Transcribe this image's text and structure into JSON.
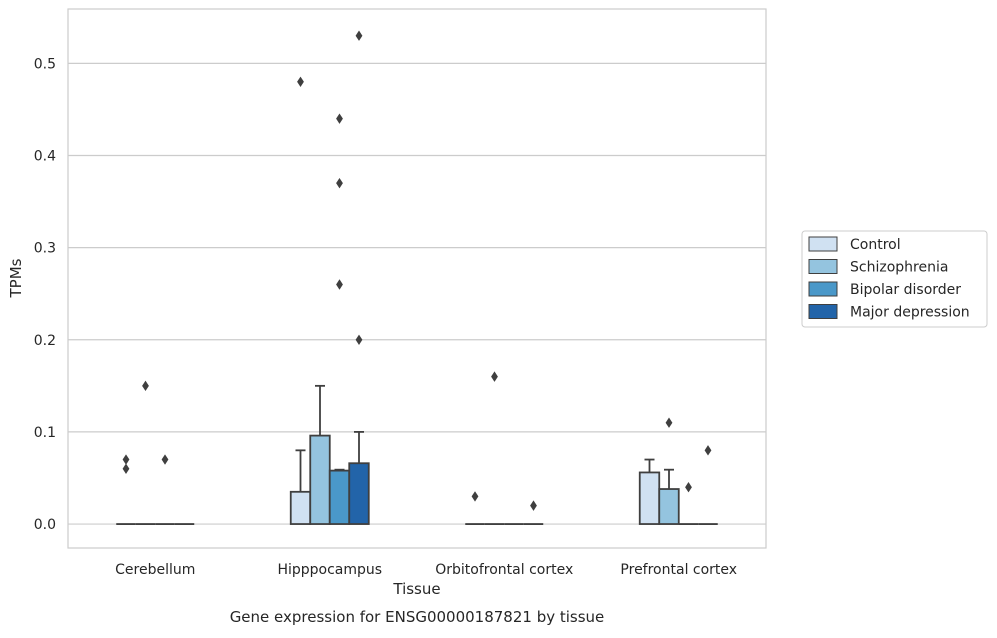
{
  "chart_data": {
    "type": "bar",
    "caption": "Gene expression for ENSG00000187821 by tissue",
    "xlabel": "Tissue",
    "ylabel": "TPMs",
    "ylim": [
      -0.026,
      0.559
    ],
    "yticks": [
      "0.0",
      "0.1",
      "0.2",
      "0.3",
      "0.4",
      "0.5"
    ],
    "ytick_values": [
      0.0,
      0.1,
      0.2,
      0.3,
      0.4,
      0.5
    ],
    "grid": "horizontal",
    "legend_position": "outside-right",
    "categories": [
      "Cerebellum",
      "Hipppocampus",
      "Orbitofrontal cortex",
      "Prefrontal cortex"
    ],
    "series": [
      {
        "name": "Control",
        "color": "#d0e1f2",
        "values": [
          0.0,
          0.035,
          0.0,
          0.056
        ],
        "error_high": [
          0.0,
          0.08,
          0.0,
          0.07
        ],
        "outliers": [
          [
            0.07,
            0.06
          ],
          [
            0.48
          ],
          [
            0.03
          ],
          []
        ]
      },
      {
        "name": "Schizophrenia",
        "color": "#94c4df",
        "values": [
          0.0,
          0.096,
          0.0,
          0.038
        ],
        "error_high": [
          0.0,
          0.15,
          0.0,
          0.059
        ],
        "outliers": [
          [
            0.15
          ],
          [],
          [
            0.16
          ],
          [
            0.11
          ]
        ]
      },
      {
        "name": "Bipolar disorder",
        "color": "#4a98c9",
        "values": [
          0.0,
          0.058,
          0.0,
          0.0
        ],
        "error_high": [
          0.0,
          0.059,
          0.0,
          0.0
        ],
        "outliers": [
          [
            0.07
          ],
          [
            0.44,
            0.37,
            0.26
          ],
          [],
          [
            0.04
          ]
        ]
      },
      {
        "name": "Major depression",
        "color": "#2264a9",
        "values": [
          0.0,
          0.066,
          0.0,
          0.0
        ],
        "error_high": [
          0.0,
          0.1,
          0.0,
          0.0
        ],
        "outliers": [
          [],
          [
            0.53,
            0.2
          ],
          [
            0.02
          ],
          [
            0.08
          ]
        ]
      }
    ]
  }
}
